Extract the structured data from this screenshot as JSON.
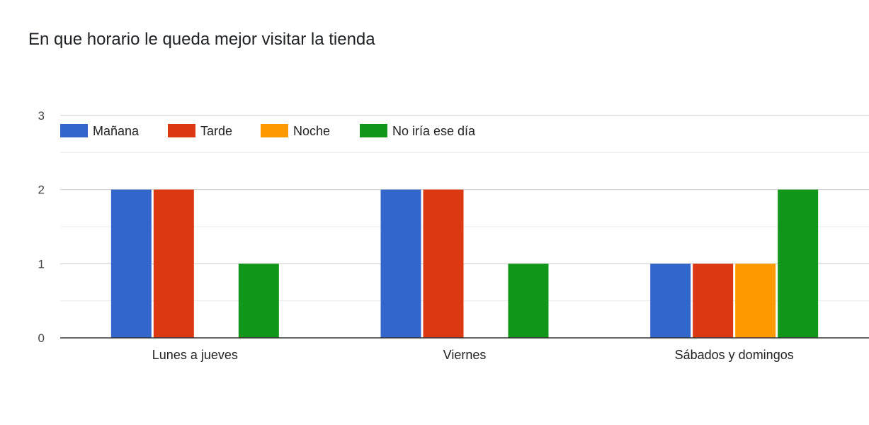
{
  "chart_data": {
    "type": "bar",
    "title": "En que horario le queda mejor visitar la tienda",
    "categories": [
      "Lunes a jueves",
      "Viernes",
      "Sábados y domingos"
    ],
    "series": [
      {
        "name": "Mañana",
        "color": "#3366cc",
        "values": [
          2,
          2,
          1
        ]
      },
      {
        "name": "Tarde",
        "color": "#dc3912",
        "values": [
          2,
          2,
          1
        ]
      },
      {
        "name": "Noche",
        "color": "#ff9900",
        "values": [
          0,
          0,
          1
        ]
      },
      {
        "name": "No iría ese día",
        "color": "#109618",
        "values": [
          1,
          1,
          2
        ]
      }
    ],
    "ylim": [
      0,
      3
    ],
    "yticks": [
      0,
      1,
      2,
      3
    ],
    "grid": true,
    "legend_position": "top-left"
  }
}
